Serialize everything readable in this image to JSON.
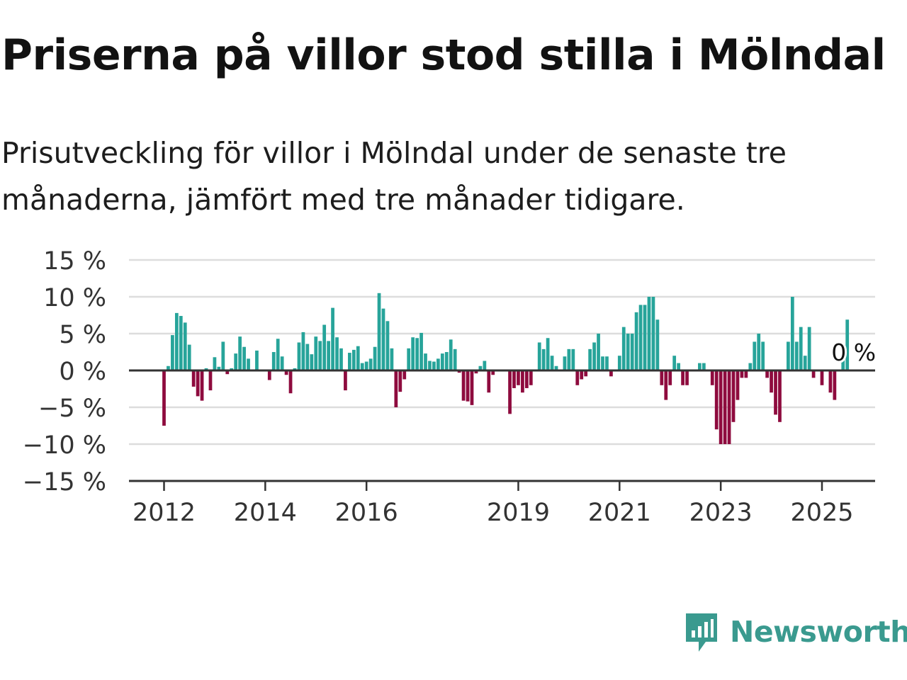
{
  "title": "Priserna på villor stod stilla i Mölndal",
  "subtitle": "Prisutveckling för villor i Mölndal under de senaste tre månaderna, jämfört med tre månader tidigare.",
  "brand": {
    "name": "Newsworthy",
    "icon": "newsworthy-logo-icon",
    "color": "#3a9a8f"
  },
  "colors": {
    "positive": "#27a49a",
    "negative": "#8e0b3e",
    "grid": "#dddddd",
    "axis": "#333333"
  },
  "chart_data": {
    "type": "bar",
    "title": "Priserna på villor stod stilla i Mölndal",
    "xlabel": "",
    "ylabel": "",
    "ylim": [
      -15,
      15
    ],
    "yticks": [
      15,
      10,
      5,
      0,
      -5,
      -10,
      -15
    ],
    "ytick_labels": [
      "15 %",
      "10 %",
      "5 %",
      "0 %",
      "−5 %",
      "−10 %",
      "−15 %"
    ],
    "xticks": [
      "2012",
      "2014",
      "2016",
      "2019",
      "2021",
      "2023",
      "2025"
    ],
    "grid": true,
    "legend": "none",
    "start": "2012-01",
    "frequency": "monthly",
    "annotation": "0 %",
    "values": [
      -7.5,
      0.6,
      4.8,
      7.8,
      7.4,
      6.5,
      3.5,
      -2.2,
      -3.5,
      -4.1,
      0.3,
      -2.7,
      1.8,
      0.5,
      3.9,
      -0.5,
      0.3,
      2.3,
      4.6,
      3.2,
      1.6,
      0,
      2.7,
      0,
      0,
      -1.3,
      2.5,
      4.3,
      1.9,
      -0.6,
      -3.1,
      0.3,
      3.8,
      5.2,
      3.6,
      2.2,
      4.6,
      4.0,
      6.2,
      4.0,
      8.5,
      4.5,
      3.0,
      -2.7,
      2.4,
      2.8,
      3.3,
      1.0,
      1.2,
      1.6,
      3.2,
      10.5,
      8.4,
      6.7,
      3.0,
      -5.0,
      -2.9,
      -1.2,
      3.0,
      4.5,
      4.4,
      5.1,
      2.3,
      1.3,
      1.2,
      1.6,
      2.3,
      2.5,
      4.2,
      2.9,
      -0.3,
      -4.1,
      -4.2,
      -4.7,
      -0.4,
      0.6,
      1.3,
      -3.0,
      -0.6,
      0,
      0,
      0,
      -5.9,
      -2.4,
      -2.0,
      -3.0,
      -2.4,
      -2.0,
      0,
      3.8,
      2.9,
      4.4,
      2.0,
      0.6,
      0,
      1.9,
      2.9,
      2.9,
      -2.0,
      -1.2,
      -0.8,
      2.9,
      3.8,
      5.0,
      1.9,
      1.9,
      -0.8,
      0,
      2.0,
      5.9,
      5.0,
      5.0,
      7.9,
      8.9,
      8.9,
      10.0,
      10.0,
      6.9,
      -2.0,
      -4.0,
      -2.0,
      2.0,
      1.0,
      -2.0,
      -2.0,
      0,
      0,
      1.0,
      1.0,
      0,
      -2.0,
      -8.0,
      -10.0,
      -10.0,
      -10.0,
      -7.0,
      -4.0,
      -1.0,
      -1.0,
      1.0,
      3.9,
      5.0,
      3.9,
      -1.0,
      -3.0,
      -6.0,
      -7.0,
      0,
      3.9,
      10.0,
      3.9,
      5.9,
      2.0,
      5.9,
      -1.0,
      0,
      -2.0,
      0,
      -3.0,
      -4.0,
      0,
      1.6,
      6.9,
      0
    ]
  }
}
